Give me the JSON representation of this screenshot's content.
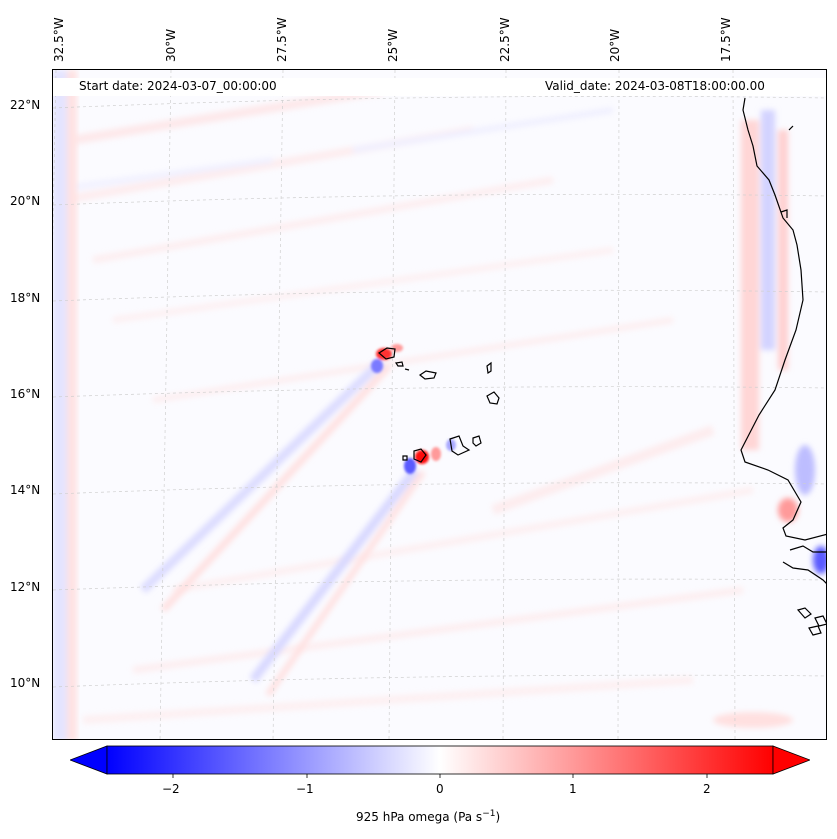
{
  "map": {
    "start_date": "Start date: 2024-03-07_00:00:00",
    "valid_date": "Valid_date: 2024-03-08T18:00:00.00",
    "longitude_labels": [
      "32.5°W",
      "30°W",
      "27.5°W",
      "25°W",
      "22.5°W",
      "20°W",
      "17.5°W"
    ],
    "latitude_labels": [
      "22°N",
      "20°N",
      "18°N",
      "16°N",
      "14°N",
      "12°N",
      "10°N"
    ],
    "gridlines": true,
    "colormap": "bwr",
    "colors": {
      "negative": "#0000ff",
      "zero": "#ffffff",
      "positive": "#ff0000",
      "coastline": "#000000"
    }
  },
  "colorbar": {
    "tick_labels": [
      "−2",
      "−1",
      "0",
      "1",
      "2"
    ],
    "tick_values": [
      -2,
      -1,
      0,
      1,
      2
    ],
    "range": [
      -2.5,
      2.5
    ],
    "extend": "both",
    "label_main": "925 hPa omega (Pa s",
    "label_sup": "−1",
    "label_tail": ")"
  }
}
